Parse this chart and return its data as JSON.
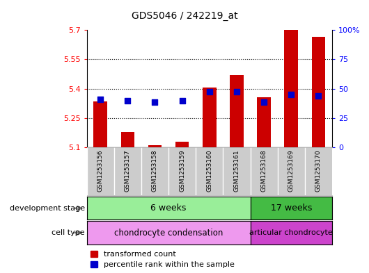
{
  "title": "GDS5046 / 242219_at",
  "samples": [
    "GSM1253156",
    "GSM1253157",
    "GSM1253158",
    "GSM1253159",
    "GSM1253160",
    "GSM1253161",
    "GSM1253168",
    "GSM1253169",
    "GSM1253170"
  ],
  "bar_values": [
    5.335,
    5.18,
    5.11,
    5.13,
    5.405,
    5.47,
    5.355,
    5.7,
    5.665
  ],
  "blue_values": [
    5.345,
    5.34,
    5.33,
    5.34,
    5.385,
    5.385,
    5.33,
    5.37,
    5.365
  ],
  "bar_base": 5.1,
  "ylim_left": [
    5.1,
    5.7
  ],
  "ylim_right": [
    0,
    100
  ],
  "yticks_left": [
    5.1,
    5.25,
    5.4,
    5.55,
    5.7
  ],
  "yticks_right": [
    0,
    25,
    50,
    75,
    100
  ],
  "ytick_labels_left": [
    "5.1",
    "5.25",
    "5.4",
    "5.55",
    "5.7"
  ],
  "ytick_labels_right": [
    "0",
    "25",
    "50",
    "75",
    "100%"
  ],
  "bar_color": "#cc0000",
  "blue_color": "#0000cc",
  "grid_lines": [
    5.25,
    5.4,
    5.55
  ],
  "title_fontsize": 10,
  "development_stage_label": "development stage",
  "cell_type_label": "cell type",
  "group1_label": "6 weeks",
  "group2_label": "17 weeks",
  "celltype1_label": "chondrocyte condensation",
  "celltype2_label": "articular chondrocyte",
  "group1_color": "#99ee99",
  "group2_color": "#44bb44",
  "celltype1_color": "#ee99ee",
  "celltype2_color": "#cc44cc",
  "sample_box_color": "#cccccc",
  "legend_bar_label": "transformed count",
  "legend_blue_label": "percentile rank within the sample",
  "blue_square_size": 30,
  "n_group1": 6,
  "n_group2": 3
}
